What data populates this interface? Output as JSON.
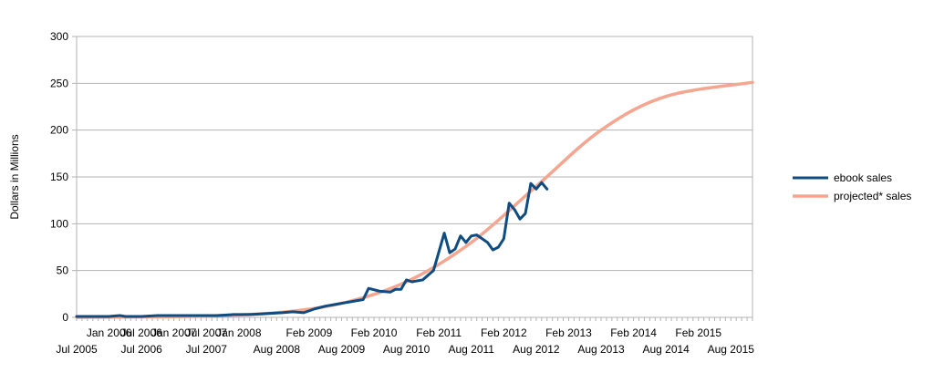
{
  "chart_data": {
    "type": "line",
    "title": "",
    "xlabel": "",
    "ylabel": "Dollars in Millions",
    "ylim": [
      0,
      300
    ],
    "yticks": [
      "0",
      "50",
      "100",
      "150",
      "200",
      "250",
      "300"
    ],
    "xrange": [
      "2005-07",
      "2015-12"
    ],
    "xtick_labels_upper": [
      "Jan 2006",
      "Jul 2006",
      "Jan 2007",
      "Jul 2007",
      "Jan 2008",
      "Feb 2009",
      "Feb 2010",
      "Feb 2011",
      "Feb 2012",
      "Feb 2013",
      "Feb 2014",
      "Feb 2015"
    ],
    "xtick_labels_lower": [
      "Jul 2005",
      "Jul 2006",
      "Jul 2007",
      "Aug 2008",
      "Aug 2009",
      "Aug 2010",
      "Aug 2011",
      "Aug 2012",
      "Aug 2013",
      "Aug 2014",
      "Aug 2015"
    ],
    "grid": "horizontal",
    "legend": "right",
    "series": [
      {
        "name": "ebook sales",
        "color": "#0f4c81",
        "points": [
          [
            "2005-07",
            1
          ],
          [
            "2005-10",
            1
          ],
          [
            "2006-01",
            1
          ],
          [
            "2006-03",
            2
          ],
          [
            "2006-04",
            1
          ],
          [
            "2006-07",
            1
          ],
          [
            "2006-10",
            2
          ],
          [
            "2006-12",
            2
          ],
          [
            "2007-02",
            2
          ],
          [
            "2007-04",
            2
          ],
          [
            "2007-06",
            2
          ],
          [
            "2007-09",
            2
          ],
          [
            "2007-12",
            3
          ],
          [
            "2008-03",
            3
          ],
          [
            "2008-06",
            4
          ],
          [
            "2008-09",
            5
          ],
          [
            "2008-11",
            6
          ],
          [
            "2009-01",
            5
          ],
          [
            "2009-03",
            9
          ],
          [
            "2009-05",
            12
          ],
          [
            "2009-07",
            14
          ],
          [
            "2009-09",
            16
          ],
          [
            "2009-11",
            18
          ],
          [
            "2009-12",
            19
          ],
          [
            "2010-01",
            31
          ],
          [
            "2010-03",
            28
          ],
          [
            "2010-05",
            27
          ],
          [
            "2010-06",
            30
          ],
          [
            "2010-07",
            30
          ],
          [
            "2010-08",
            40
          ],
          [
            "2010-09",
            38
          ],
          [
            "2010-11",
            40
          ],
          [
            "2011-01",
            50
          ],
          [
            "2011-03",
            90
          ],
          [
            "2011-04",
            69
          ],
          [
            "2011-05",
            73
          ],
          [
            "2011-06",
            87
          ],
          [
            "2011-07",
            80
          ],
          [
            "2011-08",
            87
          ],
          [
            "2011-09",
            88
          ],
          [
            "2011-11",
            80
          ],
          [
            "2011-12",
            72
          ],
          [
            "2012-01",
            75
          ],
          [
            "2012-02",
            84
          ],
          [
            "2012-03",
            122
          ],
          [
            "2012-04",
            115
          ],
          [
            "2012-05",
            105
          ],
          [
            "2012-06",
            111
          ],
          [
            "2012-07",
            143
          ],
          [
            "2012-08",
            137
          ],
          [
            "2012-09",
            144
          ],
          [
            "2012-10",
            137
          ]
        ]
      },
      {
        "name": "projected* sales",
        "color": "#f4a690",
        "points": [
          [
            "2005-07",
            0
          ],
          [
            "2006-07",
            0.5
          ],
          [
            "2007-07",
            1.5
          ],
          [
            "2008-08",
            5
          ],
          [
            "2009-08",
            15
          ],
          [
            "2010-08",
            38
          ],
          [
            "2011-08",
            80
          ],
          [
            "2012-08",
            140
          ],
          [
            "2013-08",
            200
          ],
          [
            "2014-08",
            236
          ],
          [
            "2015-12",
            251
          ]
        ]
      }
    ]
  }
}
